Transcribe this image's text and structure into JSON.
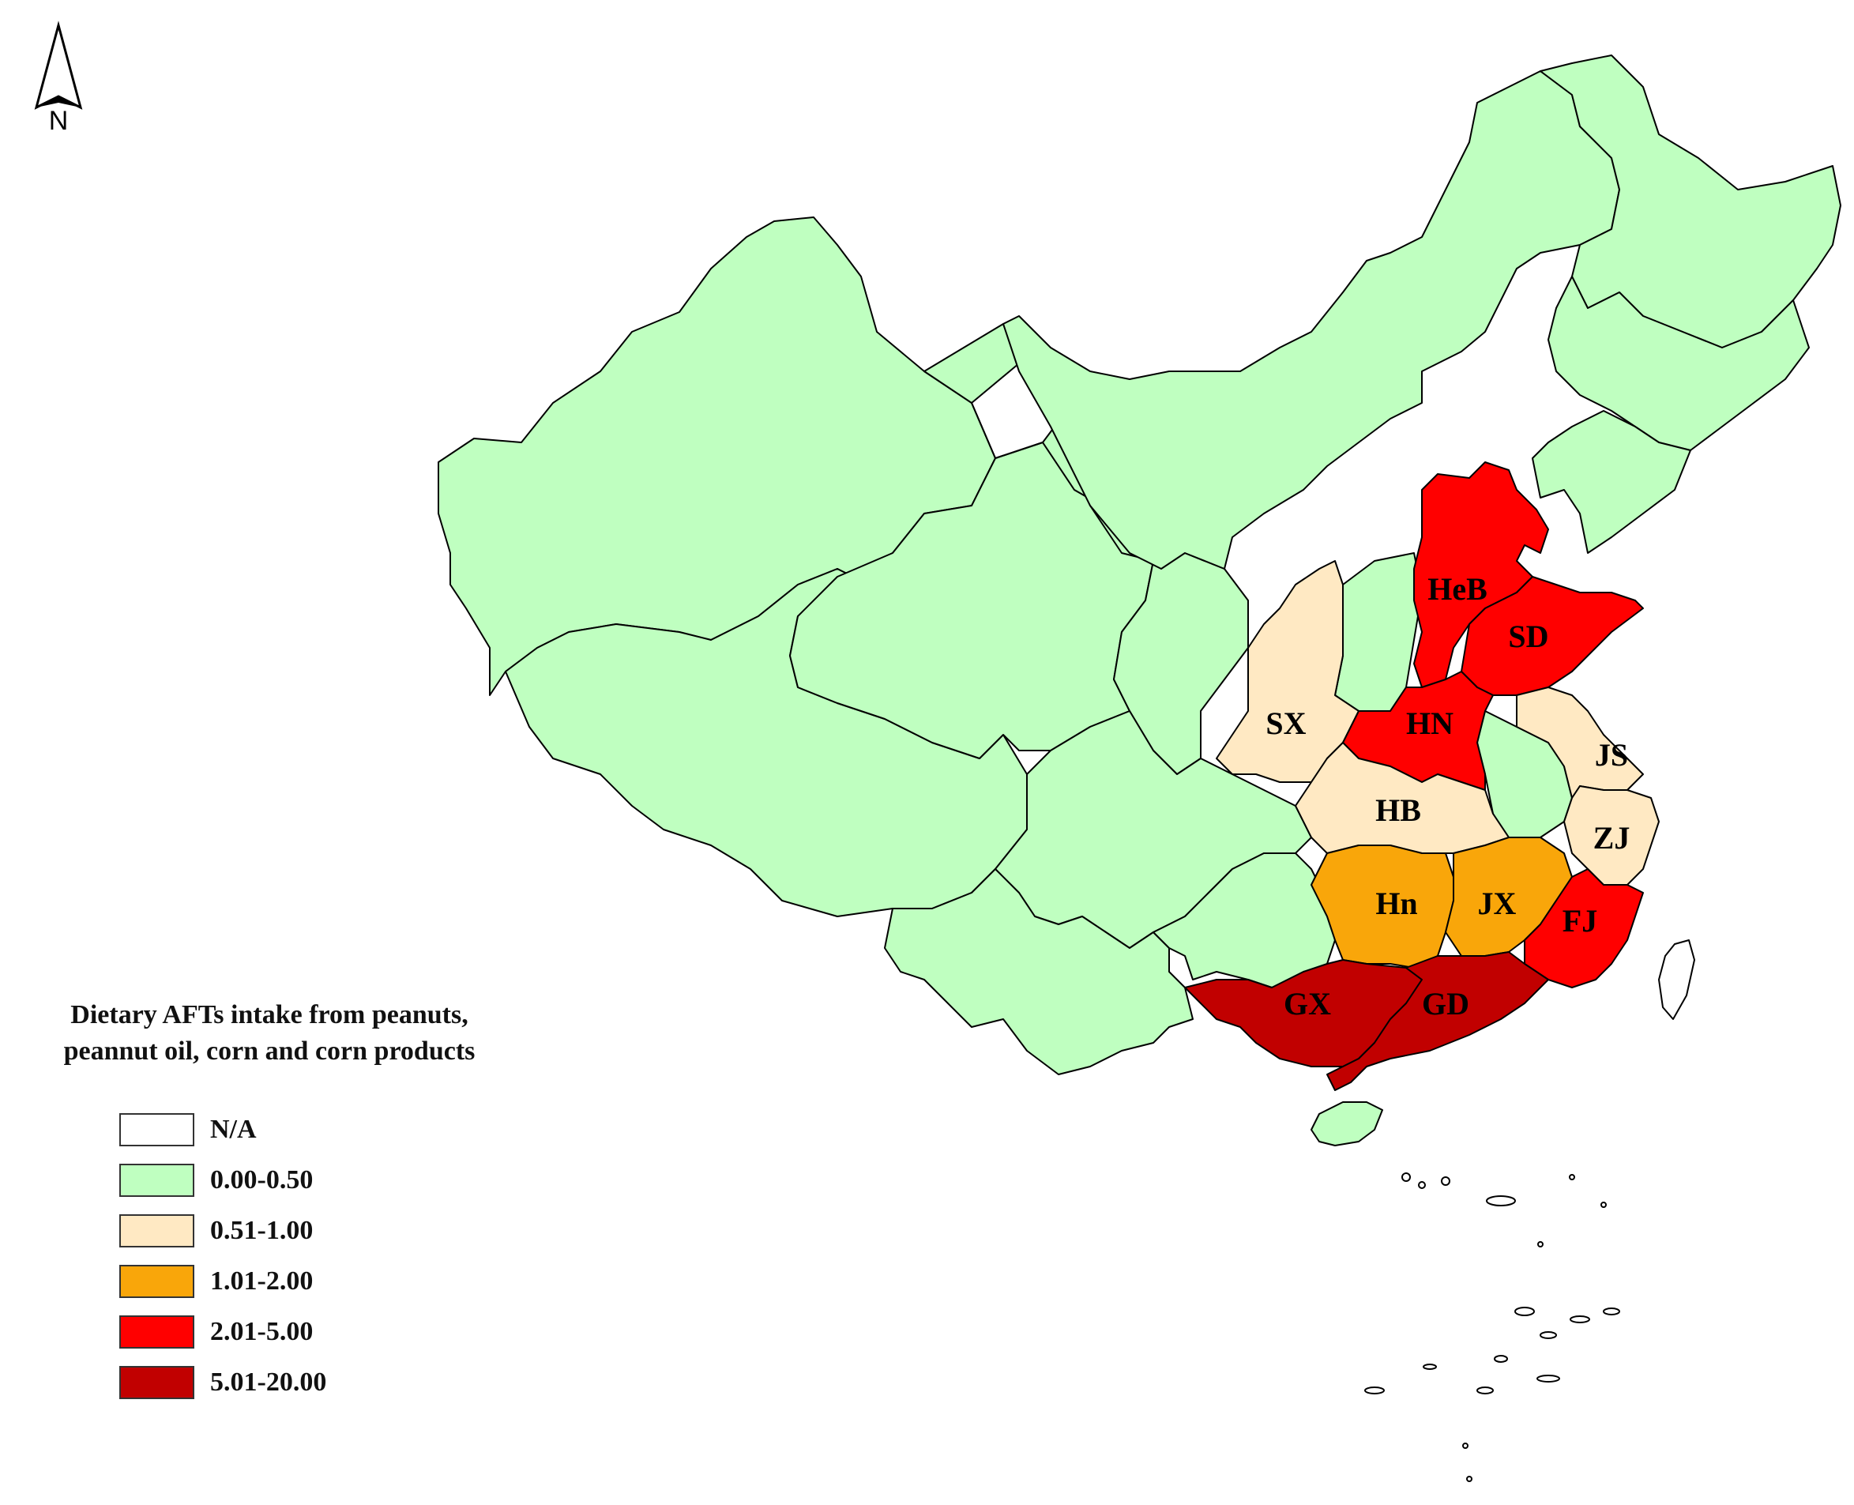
{
  "north_label": "N",
  "legend": {
    "title_line1": "Dietary AFTs intake from peanuts,",
    "title_line2": "peannut oil, corn and corn products",
    "classes": [
      {
        "label": "N/A",
        "color": "#ffffff"
      },
      {
        "label": "0.00-0.50",
        "color": "#bfffc0"
      },
      {
        "label": "0.51-1.00",
        "color": "#ffe9c3"
      },
      {
        "label": "1.01-2.00",
        "color": "#f9a60a"
      },
      {
        "label": "2.01-5.00",
        "color": "#ff0000"
      },
      {
        "label": "5.01-20.00",
        "color": "#c10000"
      }
    ]
  },
  "regions": [
    {
      "id": "HeB",
      "label": "HeB",
      "class": "2.01-5.00"
    },
    {
      "id": "SD",
      "label": "SD",
      "class": "2.01-5.00"
    },
    {
      "id": "SX",
      "label": "SX",
      "class": "0.51-1.00"
    },
    {
      "id": "HN",
      "label": "HN",
      "class": "2.01-5.00"
    },
    {
      "id": "JS",
      "label": "JS",
      "class": "0.51-1.00"
    },
    {
      "id": "HB",
      "label": "HB",
      "class": "0.51-1.00"
    },
    {
      "id": "ZJ",
      "label": "ZJ",
      "class": "0.51-1.00"
    },
    {
      "id": "Hn",
      "label": "Hn",
      "class": "1.01-2.00"
    },
    {
      "id": "JX",
      "label": "JX",
      "class": "1.01-2.00"
    },
    {
      "id": "FJ",
      "label": "FJ",
      "class": "2.01-5.00"
    },
    {
      "id": "GX",
      "label": "GX",
      "class": "5.01-20.00"
    },
    {
      "id": "GD",
      "label": "GD",
      "class": "5.01-20.00"
    }
  ]
}
